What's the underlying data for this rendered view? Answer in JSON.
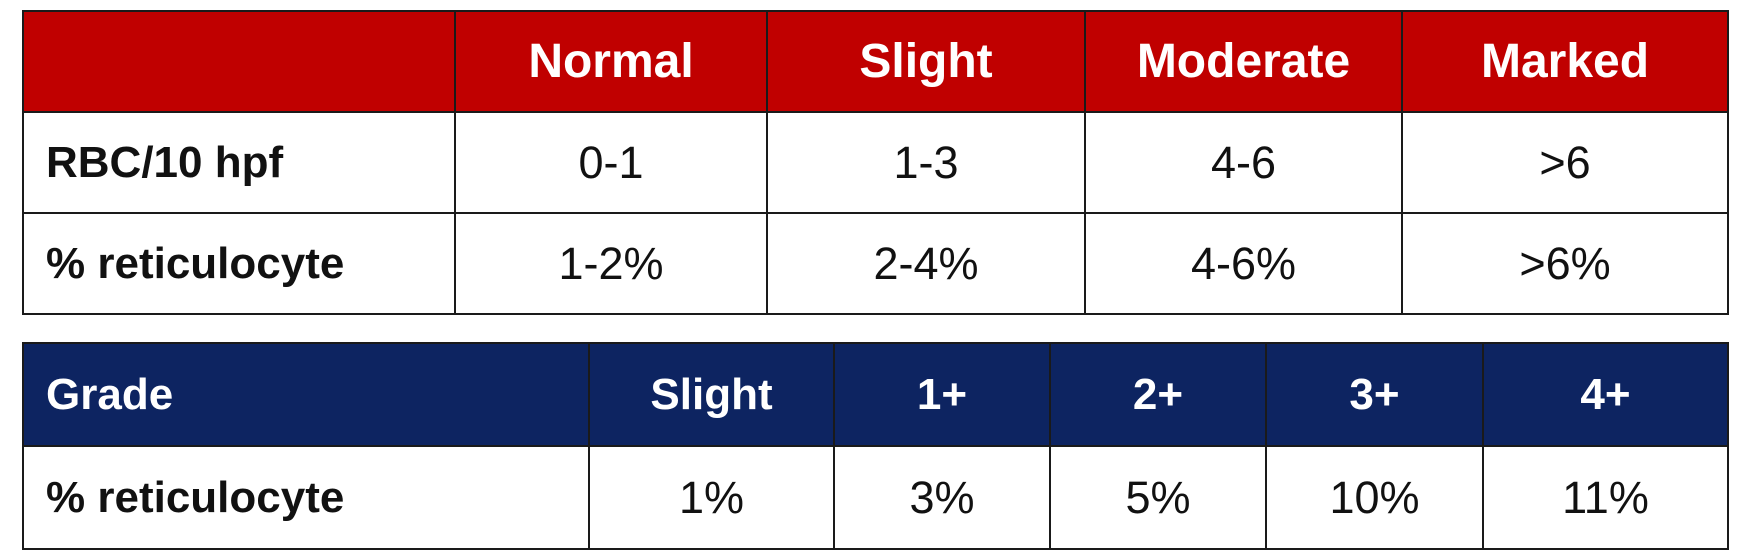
{
  "table_severity": {
    "header": [
      "",
      "Normal",
      "Slight",
      "Moderate",
      "Marked"
    ],
    "rows": [
      {
        "label": "RBC/10 hpf",
        "cells": [
          "0-1",
          "1-3",
          "4-6",
          ">6"
        ]
      },
      {
        "label": "% reticulocyte",
        "cells": [
          "1-2%",
          "2-4%",
          "4-6%",
          ">6%"
        ]
      }
    ],
    "header_color": "#c00000"
  },
  "table_grade": {
    "header": [
      "Grade",
      "Slight",
      "1+",
      "2+",
      "3+",
      "4+"
    ],
    "rows": [
      {
        "label": "% reticulocyte",
        "cells": [
          "1%",
          "3%",
          "5%",
          "10%",
          "11%"
        ]
      }
    ],
    "header_color": "#0d2461"
  }
}
